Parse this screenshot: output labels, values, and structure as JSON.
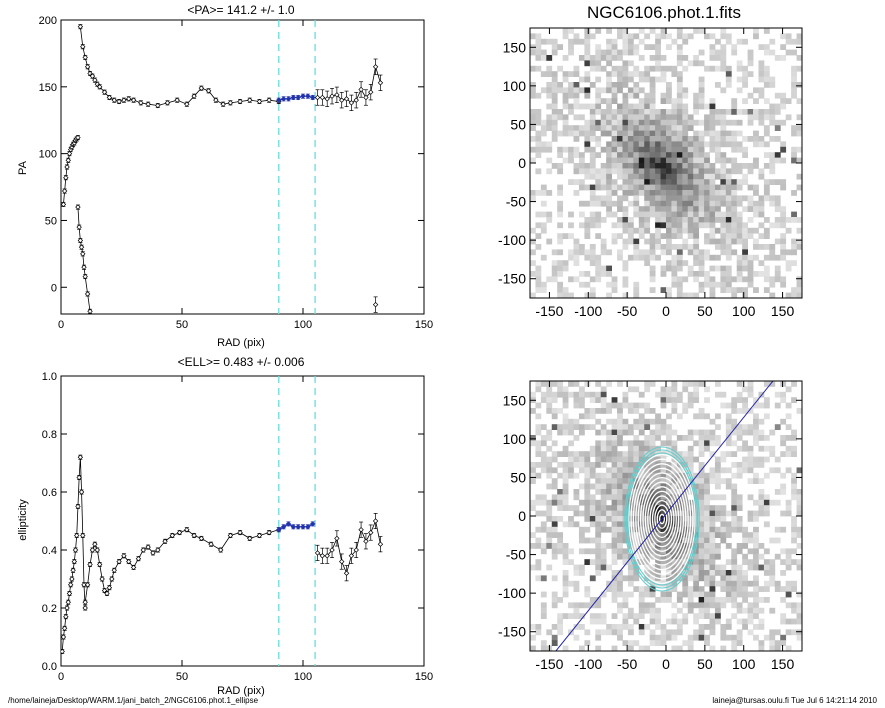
{
  "footer": {
    "left": "/home/laineja/Desktop/WARM.1/jani_batch_2/NGC6106.phot.1_ellipse",
    "right": "laineja@tursas.oulu.fi  Tue Jul  6 14:21:14 2010"
  },
  "image_panels": [
    {
      "title": "NGC6106.phot.1.fits",
      "x_ticks": [
        "-150",
        "-100",
        "-50",
        "0",
        "50",
        "100",
        "150"
      ],
      "y_ticks": [
        "150",
        "100",
        "50",
        "0",
        "-50",
        "-100",
        "-150"
      ],
      "xlim": [
        -175,
        175
      ],
      "ylim": [
        -175,
        175
      ]
    },
    {
      "title": "",
      "x_ticks": [
        "-150",
        "-100",
        "-50",
        "0",
        "50",
        "100",
        "150"
      ],
      "y_ticks": [
        "150",
        "100",
        "50",
        "0",
        "-50",
        "-100",
        "-150"
      ],
      "xlim": [
        -175,
        175
      ],
      "ylim": [
        -175,
        175
      ],
      "overlay": {
        "ellipse_pa_deg": 141.2,
        "ellipticity": 0.483,
        "line_color": "#2222aa",
        "outer_ellipse_color": "#66cccc"
      }
    }
  ],
  "chart_data": [
    {
      "type": "scatter",
      "title": "<PA>= 141.2 +/-   1.0",
      "xlabel": "RAD (pix)",
      "ylabel": "PA",
      "xlim": [
        0,
        150
      ],
      "ylim": [
        -20,
        200
      ],
      "x_ticks": [
        "0",
        "50",
        "100",
        "150"
      ],
      "y_ticks": [
        "0",
        "50",
        "100",
        "150",
        "200"
      ],
      "vlines": [
        90,
        105
      ],
      "vline_color": "#66dddd",
      "highlight_color": "#2233aa",
      "series": [
        {
          "x": [
            1,
            1.5,
            2,
            2.5,
            3,
            3.5,
            4,
            4.5,
            5,
            5.5,
            6,
            6.5,
            7
          ],
          "y": [
            62,
            72,
            82,
            90,
            95,
            100,
            103,
            105,
            107,
            108,
            110,
            111,
            112
          ]
        },
        {
          "x": [
            7,
            7.5,
            8,
            8.5,
            9,
            9.5,
            10,
            11,
            12
          ],
          "y": [
            60,
            45,
            35,
            30,
            25,
            15,
            8,
            -5,
            -18
          ]
        },
        {
          "x": [
            8,
            9,
            10,
            11,
            12,
            13,
            14,
            15,
            16,
            18,
            20,
            22,
            24,
            26,
            28,
            30,
            33,
            36,
            40,
            44,
            48,
            52,
            55,
            58,
            61,
            64,
            67,
            70,
            74,
            78,
            82,
            86,
            90
          ],
          "y": [
            195,
            180,
            172,
            165,
            160,
            158,
            155,
            152,
            150,
            146,
            142,
            140,
            139,
            140,
            141,
            140,
            138,
            137,
            136,
            138,
            140,
            137,
            143,
            149,
            147,
            140,
            137,
            138,
            139,
            140,
            139,
            140,
            139
          ]
        },
        {
          "x": [
            90,
            92,
            94,
            96,
            98,
            100,
            102,
            104
          ],
          "y": [
            140,
            141,
            141,
            142,
            142,
            143,
            143,
            142
          ]
        },
        {
          "x": [
            106,
            108,
            110,
            112,
            114,
            116,
            118,
            120,
            122,
            124,
            126,
            128,
            130,
            132
          ],
          "y": [
            142,
            142,
            141,
            143,
            144,
            140,
            141,
            138,
            140,
            148,
            142,
            146,
            165,
            153
          ]
        },
        {
          "x": [
            130
          ],
          "y": [
            -13
          ]
        }
      ]
    },
    {
      "type": "scatter",
      "title": "<ELL>= 0.483 +/-  0.006",
      "xlabel": "RAD (pix)",
      "ylabel": "ellipticity",
      "xlim": [
        0,
        150
      ],
      "ylim": [
        0.0,
        1.0
      ],
      "x_ticks": [
        "0",
        "50",
        "100",
        "150"
      ],
      "y_ticks": [
        "0.0",
        "0.2",
        "0.4",
        "0.6",
        "0.8",
        "1.0"
      ],
      "vlines": [
        90,
        105
      ],
      "vline_color": "#66dddd",
      "highlight_color": "#2233aa",
      "series": [
        {
          "x": [
            0.5,
            1,
            1.5,
            2,
            2.5,
            3,
            3.5,
            4,
            4.5,
            5,
            5.5,
            6,
            6.5,
            7,
            7.5,
            8,
            8.5,
            9,
            9.5,
            10
          ],
          "y": [
            0.05,
            0.1,
            0.13,
            0.17,
            0.2,
            0.22,
            0.25,
            0.28,
            0.3,
            0.33,
            0.36,
            0.4,
            0.45,
            0.55,
            0.65,
            0.72,
            0.6,
            0.45,
            0.28,
            0.2
          ]
        },
        {
          "x": [
            10,
            11,
            12,
            13,
            14,
            15,
            16,
            17,
            18,
            19,
            20,
            21,
            22,
            24,
            26,
            28,
            30,
            32,
            34,
            36,
            38,
            40,
            43,
            46,
            49,
            52,
            55,
            58,
            62,
            66,
            70,
            74,
            78,
            82,
            86,
            90
          ],
          "y": [
            0.22,
            0.28,
            0.35,
            0.4,
            0.42,
            0.4,
            0.35,
            0.3,
            0.26,
            0.25,
            0.27,
            0.3,
            0.33,
            0.36,
            0.38,
            0.36,
            0.34,
            0.37,
            0.4,
            0.41,
            0.39,
            0.4,
            0.43,
            0.45,
            0.46,
            0.47,
            0.45,
            0.44,
            0.42,
            0.4,
            0.45,
            0.46,
            0.44,
            0.45,
            0.46,
            0.47
          ]
        },
        {
          "x": [
            90,
            92,
            94,
            96,
            98,
            100,
            102,
            104
          ],
          "y": [
            0.47,
            0.48,
            0.49,
            0.48,
            0.48,
            0.48,
            0.48,
            0.49
          ]
        },
        {
          "x": [
            106,
            108,
            110,
            112,
            114,
            116,
            118,
            120,
            122,
            124,
            126,
            128,
            130,
            132
          ],
          "y": [
            0.39,
            0.38,
            0.38,
            0.4,
            0.44,
            0.36,
            0.32,
            0.38,
            0.4,
            0.47,
            0.43,
            0.46,
            0.5,
            0.42
          ]
        }
      ]
    }
  ]
}
